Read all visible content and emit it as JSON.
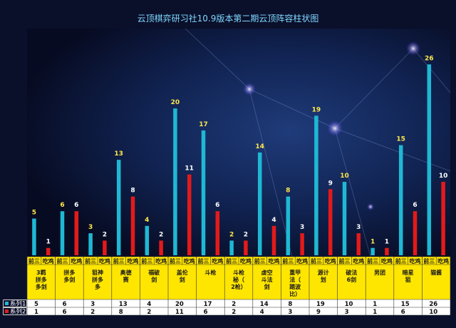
{
  "chart_data": {
    "type": "bar",
    "title": "云顶棋弈研习社10.9版本第二期云顶阵容柱状图",
    "categories": [
      {
        "name": "3羁拼多多剑",
        "lines": [
          "3羁",
          "拼多",
          "多剑"
        ]
      },
      {
        "name": "拼多多剑",
        "lines": [
          "拼多",
          "多剑"
        ]
      },
      {
        "name": "狙神拼多多",
        "lines": [
          "狙神",
          "拼多",
          "多"
        ]
      },
      {
        "name": "奥德赛",
        "lines": [
          "奥德",
          "赛"
        ]
      },
      {
        "name": "福破剑",
        "lines": [
          "福破",
          "剑"
        ]
      },
      {
        "name": "盖伦剑",
        "lines": [
          "盖伦",
          "剑"
        ]
      },
      {
        "name": "斗枪",
        "lines": [
          "斗枪"
        ]
      },
      {
        "name": "斗枪秘（2枪）",
        "lines": [
          "斗枪",
          "秘（",
          "2枪）"
        ]
      },
      {
        "name": "虚空斗法剑",
        "lines": [
          "虚空",
          "斗法",
          "剑"
        ]
      },
      {
        "name": "重甲法（踏波比）",
        "lines": [
          "重甲",
          "法（",
          "踏波",
          "比）"
        ]
      },
      {
        "name": "源计划",
        "lines": [
          "源计",
          "划"
        ]
      },
      {
        "name": "破法6剑",
        "lines": [
          "破法",
          "6剑"
        ]
      },
      {
        "name": "男团",
        "lines": [
          "男团"
        ]
      },
      {
        "name": "暗星狙",
        "lines": [
          "暗星",
          "狙"
        ]
      },
      {
        "name": "猫酱",
        "lines": [
          "猫酱"
        ]
      }
    ],
    "subcategories": [
      "前三",
      "吃鸡"
    ],
    "series": [
      {
        "name": "系列1",
        "color": "#1fb8d4",
        "values": [
          5,
          6,
          3,
          13,
          4,
          20,
          17,
          2,
          14,
          8,
          19,
          10,
          1,
          15,
          26
        ]
      },
      {
        "name": "系列2",
        "color": "#e31a1a",
        "values": [
          1,
          6,
          2,
          8,
          2,
          11,
          6,
          2,
          4,
          3,
          9,
          3,
          1,
          6,
          10
        ]
      }
    ],
    "ylim": [
      0,
      27
    ],
    "grid": false,
    "legend": "bottom-left table"
  },
  "colors": {
    "background": "#0a0f2a",
    "title": "#7fd8ff",
    "label_series1": "#ffe84a",
    "label_series2": "#ffffff",
    "table_header_bg": "#ffe600",
    "table_data_bg": "#ffffff"
  }
}
